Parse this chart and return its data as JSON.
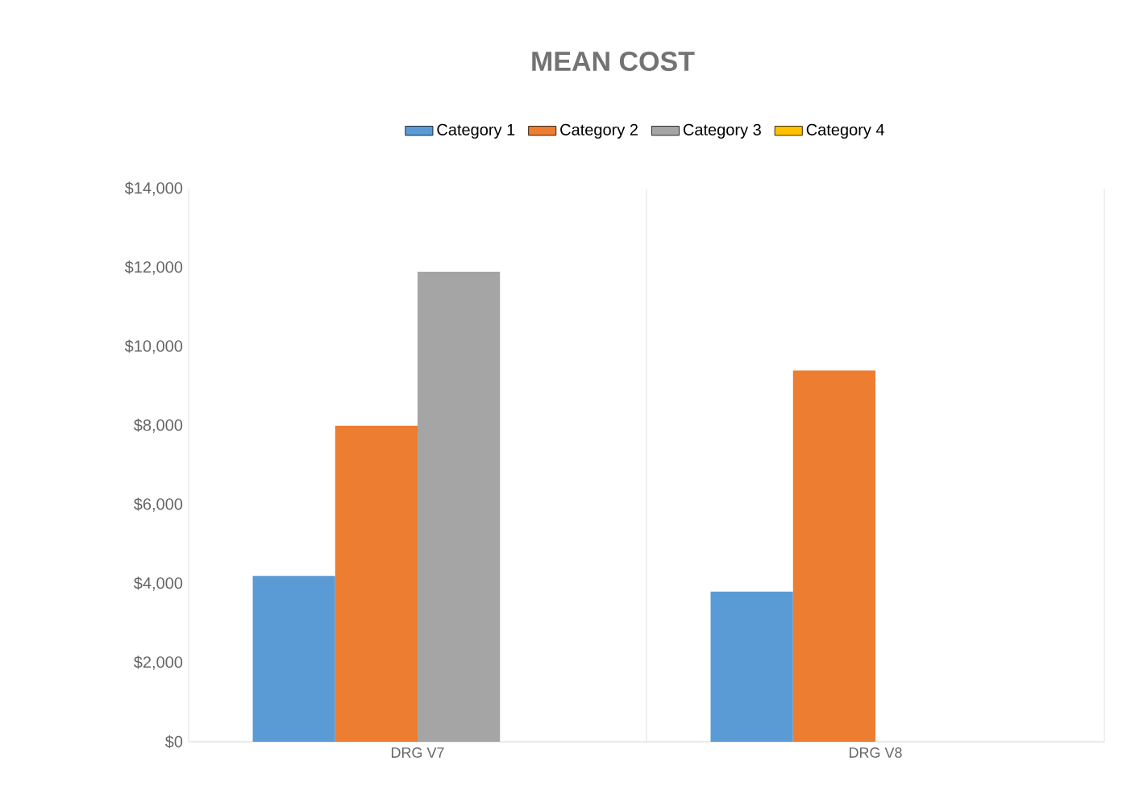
{
  "chart_data": {
    "type": "bar",
    "title": "MEAN COST",
    "categories": [
      "DRG V7",
      "DRG V8"
    ],
    "series": [
      {
        "name": "Category 1",
        "color": "#5b9bd5",
        "values": [
          4200,
          3800
        ]
      },
      {
        "name": "Category 2",
        "color": "#ed7d31",
        "values": [
          8000,
          9400
        ]
      },
      {
        "name": "Category 3",
        "color": "#a5a5a5",
        "values": [
          11900,
          null
        ]
      },
      {
        "name": "Category 4",
        "color": "#ffc000",
        "values": [
          null,
          null
        ]
      }
    ],
    "ylim": [
      0,
      14000
    ],
    "yticks": [
      {
        "value": 0,
        "label": "$0"
      },
      {
        "value": 2000,
        "label": "$2,000"
      },
      {
        "value": 4000,
        "label": "$4,000"
      },
      {
        "value": 6000,
        "label": "$6,000"
      },
      {
        "value": 8000,
        "label": "$8,000"
      },
      {
        "value": 10000,
        "label": "$10,000"
      },
      {
        "value": 12000,
        "label": "$12,000"
      },
      {
        "value": 14000,
        "label": "$14,000"
      }
    ],
    "grid": "x",
    "legend": "top"
  }
}
